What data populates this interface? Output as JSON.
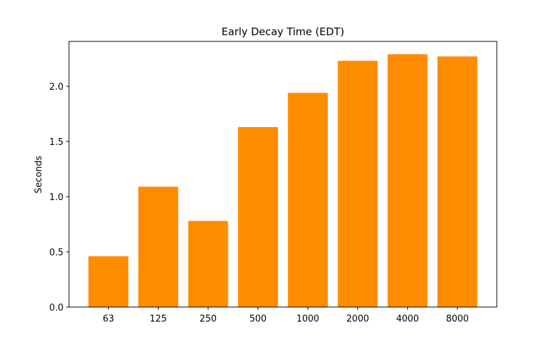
{
  "chart_data": {
    "type": "bar",
    "title": "Early Decay Time (EDT)",
    "ylabel": "Seconds",
    "categories": [
      "63",
      "125",
      "250",
      "500",
      "1000",
      "2000",
      "4000",
      "8000"
    ],
    "values": [
      0.46,
      1.09,
      0.78,
      1.63,
      1.94,
      2.23,
      2.29,
      2.27
    ],
    "color": "#ff8c00",
    "ylim": [
      0,
      2.406
    ],
    "yticks": [
      {
        "value": 0,
        "label": "0.0"
      },
      {
        "value": 0.5,
        "label": "0.5"
      },
      {
        "value": 1,
        "label": "1.0"
      },
      {
        "value": 1.5,
        "label": "1.5"
      },
      {
        "value": 2,
        "label": "2.0"
      }
    ],
    "grid": false
  }
}
